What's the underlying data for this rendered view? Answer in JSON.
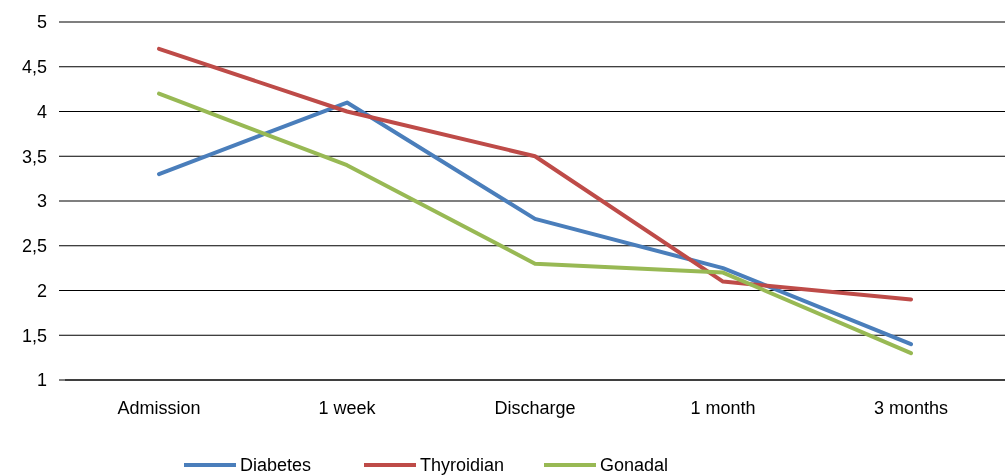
{
  "chart_data": {
    "type": "line",
    "categories": [
      "Admission",
      "1 week",
      "Discharge",
      "1 month",
      "3 months"
    ],
    "series": [
      {
        "name": "Diabetes",
        "color": "#4a7ebb",
        "values": [
          3.3,
          4.1,
          2.8,
          2.25,
          1.4
        ]
      },
      {
        "name": "Thyroidian",
        "color": "#be4b48",
        "values": [
          4.7,
          4.0,
          3.5,
          2.1,
          1.9
        ]
      },
      {
        "name": "Gonadal",
        "color": "#98b954",
        "values": [
          4.2,
          3.4,
          2.3,
          2.2,
          1.3
        ]
      }
    ],
    "ylim": [
      1,
      5
    ],
    "yticks": [
      1,
      {
        "value": 1.5,
        "label": "1,5"
      },
      2,
      {
        "value": 2.5,
        "label": "2,5"
      },
      3,
      {
        "value": 3.5,
        "label": "3,5"
      },
      4,
      {
        "value": 4.5,
        "label": "4,5"
      },
      5
    ],
    "grid": "y",
    "legend": "bottom",
    "marker": "none",
    "line_style": "solid"
  }
}
